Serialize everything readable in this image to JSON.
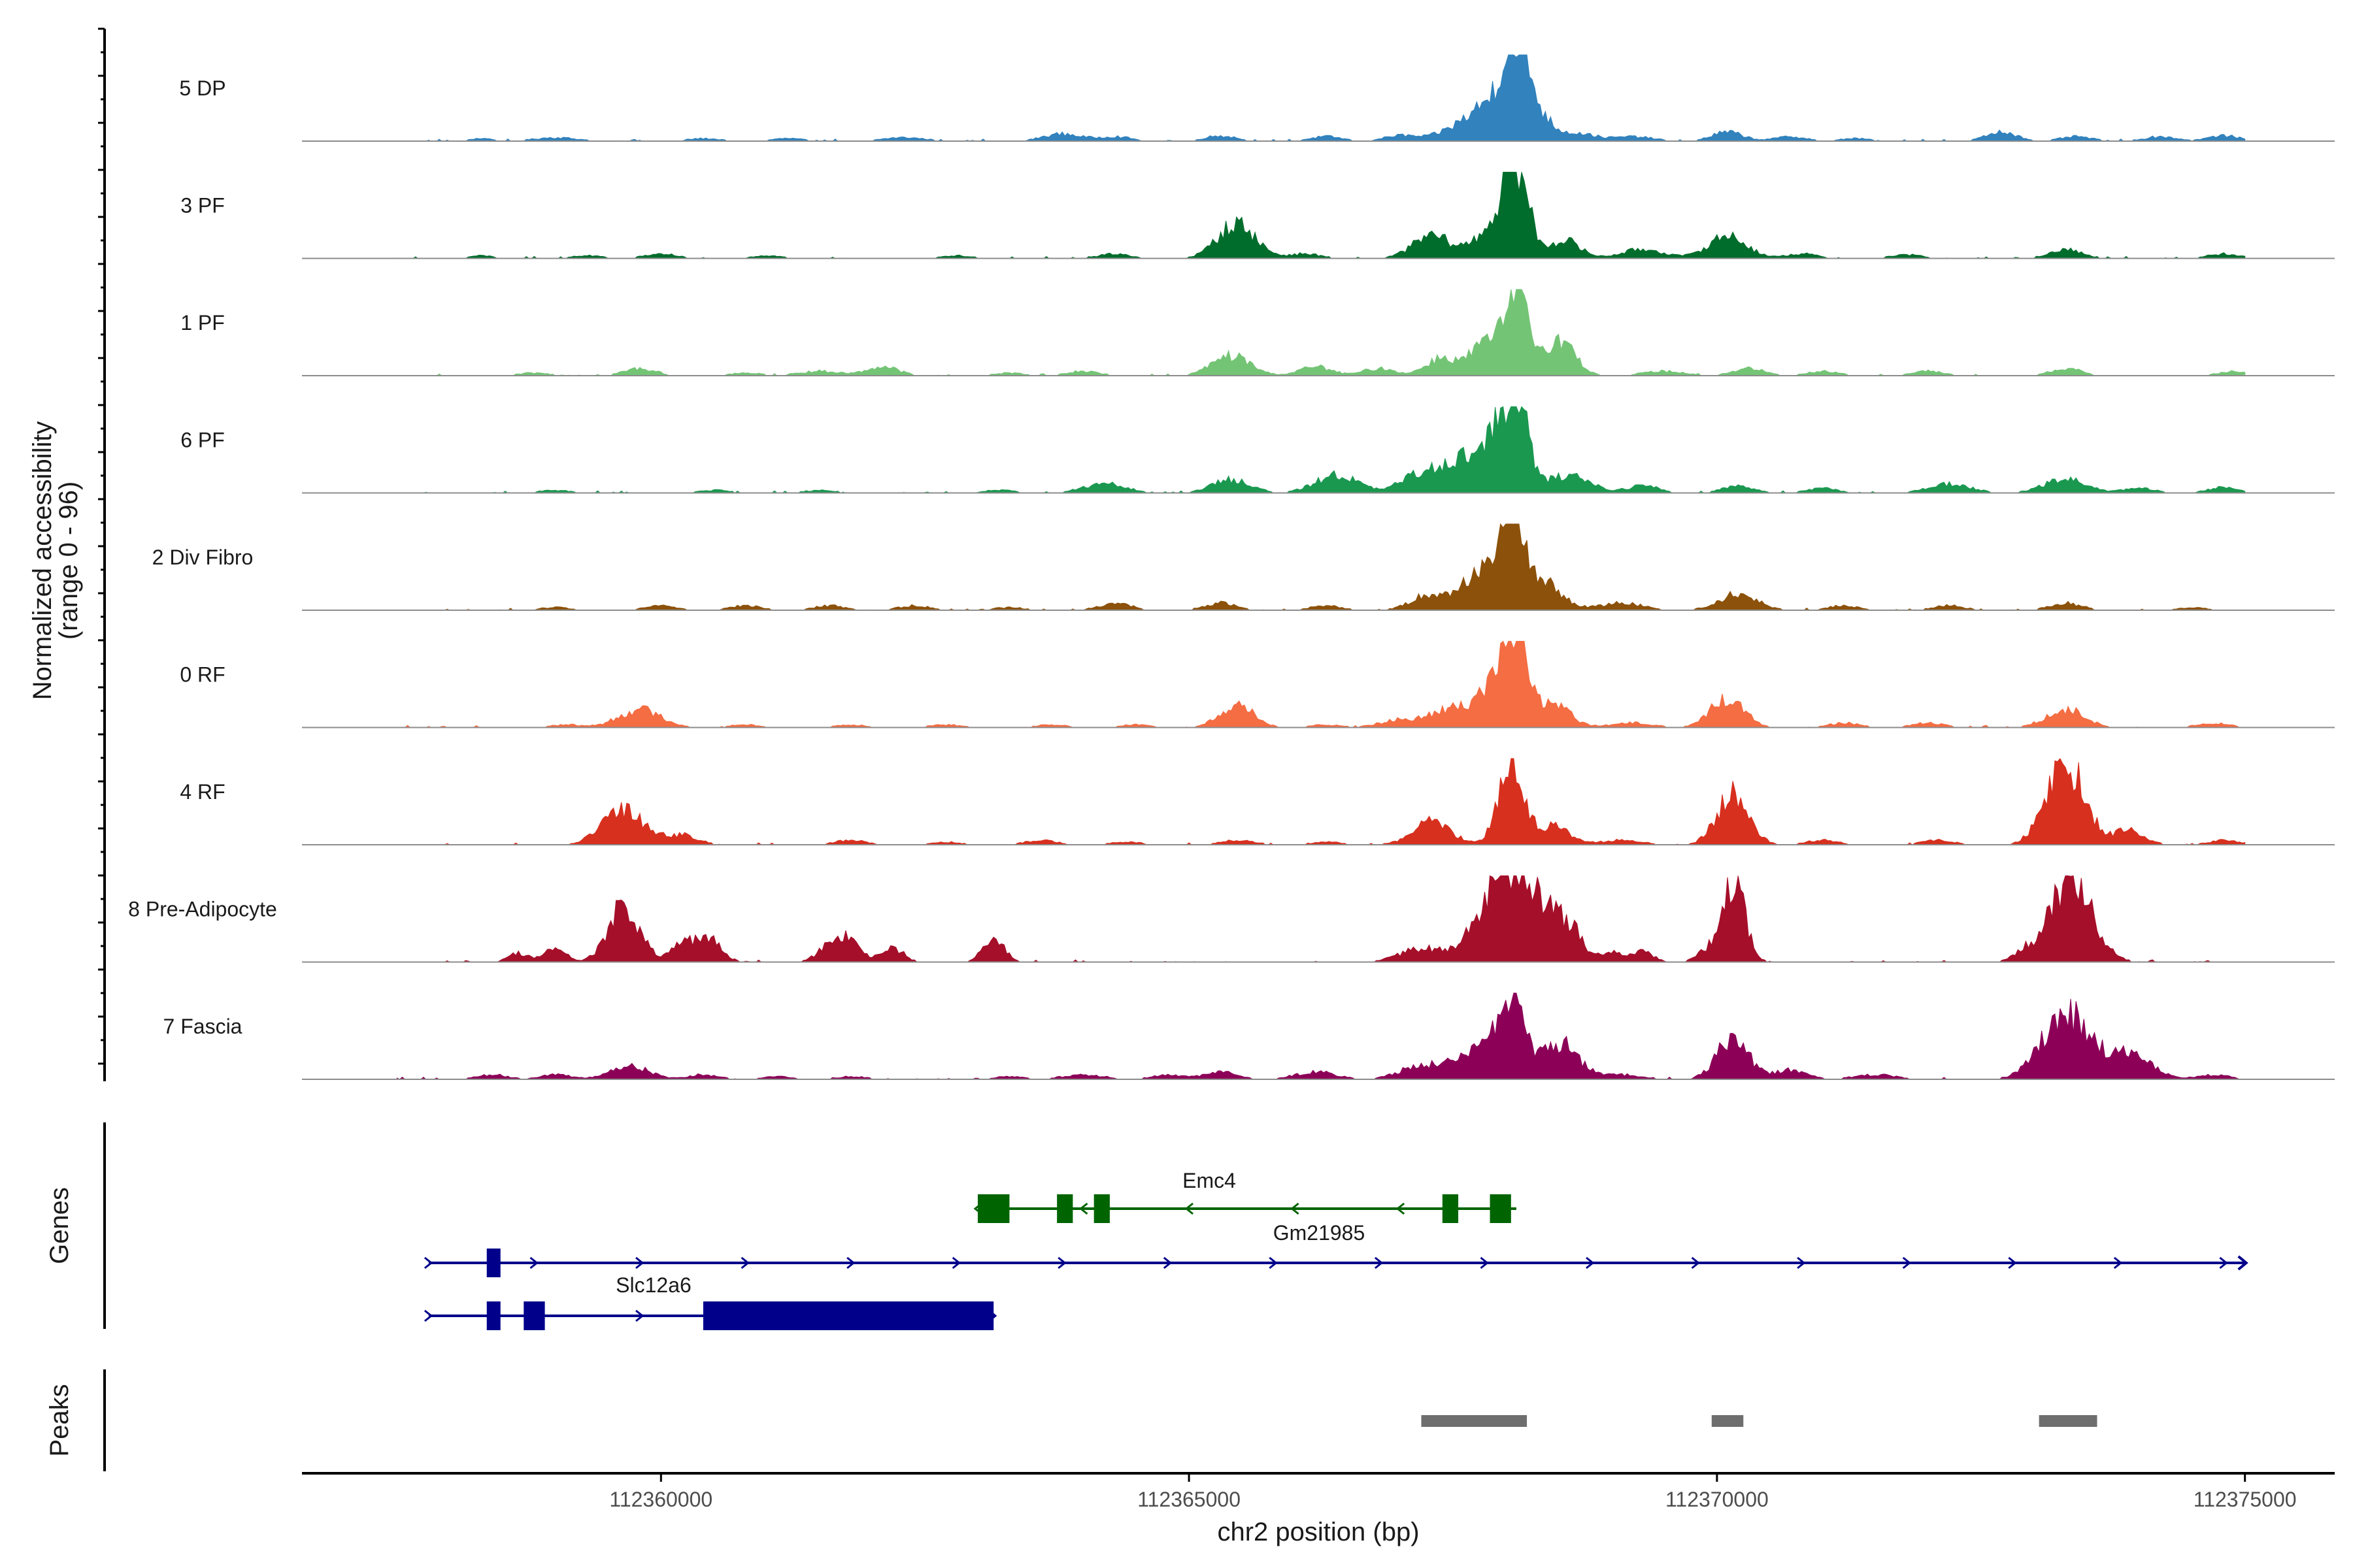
{
  "chart_data": {
    "type": "area",
    "title": "",
    "xlabel": "chr2 position (bp)",
    "ylabel": "Normalized accessibility",
    "ylabel_range": "(range 0 - 96)",
    "ylim": [
      0,
      96
    ],
    "xlim": [
      112356600,
      112375850
    ],
    "x_ticks": [
      112360000,
      112365000,
      112370000,
      112375000
    ],
    "x_tick_labels": [
      "112360000",
      "112365000",
      "112370000",
      "112375000"
    ],
    "x_start": 112357500,
    "x_end": 112375000,
    "series": [
      {
        "name": "5 DP",
        "color": "#3182bd",
        "peaks": [
          [
            112358300,
            3,
            120
          ],
          [
            112359000,
            4,
            200
          ],
          [
            112360400,
            3,
            150
          ],
          [
            112361200,
            3,
            150
          ],
          [
            112362300,
            4,
            200
          ],
          [
            112363800,
            8,
            180
          ],
          [
            112364300,
            5,
            150
          ],
          [
            112365300,
            6,
            150
          ],
          [
            112366300,
            5,
            150
          ],
          [
            112367000,
            6,
            150
          ],
          [
            112367700,
            22,
            250
          ],
          [
            112367950,
            30,
            180
          ],
          [
            112368100,
            92,
            110
          ],
          [
            112368300,
            25,
            150
          ],
          [
            112368700,
            8,
            150
          ],
          [
            112369200,
            5,
            200
          ],
          [
            112370100,
            10,
            150
          ],
          [
            112370700,
            5,
            150
          ],
          [
            112371300,
            3,
            150
          ],
          [
            112372700,
            10,
            150
          ],
          [
            112373400,
            5,
            150
          ],
          [
            112374200,
            5,
            150
          ],
          [
            112374800,
            6,
            150
          ]
        ]
      },
      {
        "name": "3 PF",
        "color": "#006d2c",
        "peaks": [
          [
            112358300,
            3,
            120
          ],
          [
            112359300,
            3,
            150
          ],
          [
            112360000,
            5,
            150
          ],
          [
            112361000,
            3,
            150
          ],
          [
            112362800,
            3,
            150
          ],
          [
            112364300,
            5,
            150
          ],
          [
            112365450,
            38,
            180
          ],
          [
            112366100,
            5,
            150
          ],
          [
            112367300,
            25,
            180
          ],
          [
            112367900,
            35,
            180
          ],
          [
            112368100,
            92,
            110
          ],
          [
            112368550,
            20,
            150
          ],
          [
            112369300,
            10,
            200
          ],
          [
            112370100,
            25,
            180
          ],
          [
            112370800,
            5,
            150
          ],
          [
            112371800,
            4,
            150
          ],
          [
            112373300,
            10,
            150
          ],
          [
            112374800,
            5,
            150
          ]
        ]
      },
      {
        "name": "1 PF",
        "color": "#74c476",
        "peaks": [
          [
            112358800,
            3,
            150
          ],
          [
            112359800,
            8,
            150
          ],
          [
            112360800,
            3,
            150
          ],
          [
            112361500,
            5,
            200
          ],
          [
            112362100,
            10,
            150
          ],
          [
            112363300,
            3,
            150
          ],
          [
            112364000,
            5,
            150
          ],
          [
            112365400,
            22,
            180
          ],
          [
            112366200,
            10,
            150
          ],
          [
            112366800,
            8,
            150
          ],
          [
            112367400,
            20,
            150
          ],
          [
            112367800,
            35,
            130
          ],
          [
            112368100,
            92,
            110
          ],
          [
            112368500,
            40,
            150
          ],
          [
            112369500,
            5,
            200
          ],
          [
            112370300,
            8,
            150
          ],
          [
            112371000,
            5,
            150
          ],
          [
            112372000,
            5,
            150
          ],
          [
            112373300,
            8,
            150
          ],
          [
            112374900,
            5,
            150
          ]
        ]
      },
      {
        "name": "6 PF",
        "color": "#1a9850",
        "peaks": [
          [
            112359000,
            3,
            150
          ],
          [
            112360500,
            3,
            150
          ],
          [
            112361500,
            3,
            150
          ],
          [
            112363200,
            3,
            150
          ],
          [
            112364200,
            10,
            200
          ],
          [
            112365400,
            15,
            180
          ],
          [
            112366400,
            20,
            200
          ],
          [
            112367100,
            12,
            150
          ],
          [
            112367500,
            35,
            220
          ],
          [
            112367900,
            50,
            160
          ],
          [
            112368100,
            92,
            110
          ],
          [
            112368600,
            20,
            200
          ],
          [
            112369300,
            8,
            150
          ],
          [
            112370200,
            8,
            150
          ],
          [
            112371000,
            5,
            150
          ],
          [
            112372200,
            10,
            200
          ],
          [
            112373300,
            15,
            200
          ],
          [
            112374000,
            5,
            150
          ],
          [
            112374800,
            6,
            150
          ]
        ]
      },
      {
        "name": "2 Div Fibro",
        "color": "#8c510a",
        "peaks": [
          [
            112359000,
            3,
            150
          ],
          [
            112360000,
            5,
            150
          ],
          [
            112360800,
            5,
            150
          ],
          [
            112361600,
            5,
            150
          ],
          [
            112362400,
            5,
            150
          ],
          [
            112363300,
            3,
            150
          ],
          [
            112364300,
            8,
            150
          ],
          [
            112365300,
            8,
            150
          ],
          [
            112366300,
            5,
            150
          ],
          [
            112367300,
            18,
            180
          ],
          [
            112367800,
            45,
            180
          ],
          [
            112368050,
            92,
            110
          ],
          [
            112368350,
            30,
            180
          ],
          [
            112369100,
            8,
            200
          ],
          [
            112370200,
            18,
            180
          ],
          [
            112371200,
            5,
            150
          ],
          [
            112372200,
            5,
            150
          ],
          [
            112373300,
            8,
            150
          ],
          [
            112374500,
            3,
            150
          ]
        ]
      },
      {
        "name": "0 RF",
        "color": "#f46d43",
        "peaks": [
          [
            112359100,
            3,
            150
          ],
          [
            112359800,
            20,
            200
          ],
          [
            112360800,
            3,
            150
          ],
          [
            112361800,
            3,
            150
          ],
          [
            112362700,
            3,
            150
          ],
          [
            112363700,
            3,
            150
          ],
          [
            112364500,
            3,
            150
          ],
          [
            112365450,
            25,
            160
          ],
          [
            112366300,
            3,
            150
          ],
          [
            112367000,
            8,
            200
          ],
          [
            112367500,
            20,
            200
          ],
          [
            112367900,
            45,
            160
          ],
          [
            112368100,
            92,
            110
          ],
          [
            112368450,
            25,
            160
          ],
          [
            112369200,
            5,
            200
          ],
          [
            112370100,
            32,
            160
          ],
          [
            112371200,
            5,
            150
          ],
          [
            112372000,
            5,
            150
          ],
          [
            112373300,
            20,
            180
          ],
          [
            112374700,
            5,
            150
          ]
        ]
      },
      {
        "name": "4 RF",
        "color": "#d7301f",
        "peaks": [
          [
            112359650,
            38,
            200
          ],
          [
            112360200,
            10,
            150
          ],
          [
            112361800,
            5,
            150
          ],
          [
            112362700,
            3,
            150
          ],
          [
            112363600,
            5,
            150
          ],
          [
            112364400,
            3,
            150
          ],
          [
            112365450,
            5,
            150
          ],
          [
            112366300,
            3,
            150
          ],
          [
            112367300,
            25,
            180
          ],
          [
            112368050,
            92,
            120
          ],
          [
            112368450,
            20,
            150
          ],
          [
            112369100,
            5,
            200
          ],
          [
            112370150,
            55,
            150
          ],
          [
            112371000,
            5,
            150
          ],
          [
            112372100,
            5,
            150
          ],
          [
            112373300,
            92,
            180
          ],
          [
            112373900,
            15,
            150
          ],
          [
            112374800,
            5,
            150
          ]
        ]
      },
      {
        "name": "8 Pre-Adipocyte",
        "color": "#a50f2a",
        "peaks": [
          [
            112358650,
            10,
            100
          ],
          [
            112359000,
            15,
            100
          ],
          [
            112359650,
            60,
            150
          ],
          [
            112360200,
            20,
            100
          ],
          [
            112360450,
            25,
            120
          ],
          [
            112361700,
            30,
            150
          ],
          [
            112362200,
            15,
            100
          ],
          [
            112363150,
            25,
            100
          ],
          [
            112367200,
            15,
            200
          ],
          [
            112367900,
            60,
            220
          ],
          [
            112368200,
            80,
            200
          ],
          [
            112368600,
            35,
            120
          ],
          [
            112369000,
            12,
            100
          ],
          [
            112369300,
            12,
            100
          ],
          [
            112369900,
            10,
            100
          ],
          [
            112370150,
            92,
            110
          ],
          [
            112372900,
            10,
            100
          ],
          [
            112373350,
            92,
            200
          ]
        ]
      },
      {
        "name": "7 Fascia",
        "color": "#8c0058",
        "peaks": [
          [
            112358400,
            5,
            150
          ],
          [
            112359000,
            5,
            150
          ],
          [
            112359700,
            15,
            180
          ],
          [
            112360400,
            5,
            150
          ],
          [
            112361100,
            3,
            150
          ],
          [
            112361800,
            3,
            150
          ],
          [
            112363300,
            3,
            150
          ],
          [
            112364000,
            5,
            200
          ],
          [
            112364800,
            5,
            150
          ],
          [
            112365300,
            8,
            150
          ],
          [
            112366200,
            8,
            200
          ],
          [
            112367200,
            15,
            200
          ],
          [
            112367700,
            30,
            200
          ],
          [
            112368050,
            92,
            120
          ],
          [
            112368500,
            40,
            180
          ],
          [
            112369100,
            5,
            200
          ],
          [
            112370150,
            45,
            150
          ],
          [
            112370700,
            10,
            150
          ],
          [
            112371500,
            5,
            200
          ],
          [
            112373300,
            75,
            220
          ],
          [
            112373900,
            30,
            200
          ],
          [
            112374700,
            5,
            150
          ]
        ]
      }
    ],
    "genes": [
      {
        "name": "Emc4",
        "strand": "-",
        "color": "#006400",
        "start": 112363000,
        "end": 112368100,
        "exons": [
          [
            112363000,
            112363300
          ],
          [
            112363750,
            112363900
          ],
          [
            112364100,
            112364250
          ],
          [
            112367400,
            112367550
          ],
          [
            112367850,
            112368050
          ]
        ]
      },
      {
        "name": "Gm21985",
        "strand": "+",
        "color": "#00008b",
        "start": 112357800,
        "end": 112375000,
        "exons": [
          [
            112358350,
            112358480
          ]
        ]
      },
      {
        "name": "Slc12a6",
        "strand": "+",
        "color": "#00008b",
        "start": 112357800,
        "end": 112363150,
        "exons": [
          [
            112358350,
            112358480
          ],
          [
            112358700,
            112358900
          ],
          [
            112360400,
            112363150
          ]
        ]
      }
    ],
    "peaks_regions": [
      [
        112367200,
        112368200
      ],
      [
        112369950,
        112370250
      ],
      [
        112373050,
        112373600
      ]
    ],
    "track_labels": {
      "genes": "Genes",
      "peaks": "Peaks"
    }
  }
}
